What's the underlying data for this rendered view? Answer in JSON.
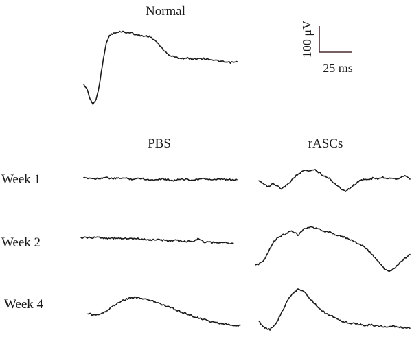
{
  "chart_data": {
    "type": "line",
    "title": "",
    "panels": [
      {
        "id": "normal",
        "label": "Normal",
        "values": [
          -0.2,
          -0.3,
          -0.55,
          -0.7,
          -0.55,
          -0.2,
          0.35,
          0.8,
          1.02,
          1.08,
          1.1,
          1.12,
          1.14,
          1.13,
          1.1,
          1.12,
          1.08,
          1.05,
          1.04,
          1.02,
          1.03,
          1.01,
          0.95,
          0.9,
          0.8,
          0.72,
          0.62,
          0.56,
          0.52,
          0.5,
          0.48,
          0.47,
          0.46,
          0.47,
          0.46,
          0.45,
          0.46,
          0.47,
          0.46,
          0.45,
          0.44,
          0.43,
          0.41,
          0.4,
          0.38,
          0.37,
          0.36,
          0.36,
          0.37,
          0.37
        ]
      },
      {
        "id": "pbs-week-1",
        "column": "PBS",
        "row": "Week 1",
        "values": [
          0.02,
          0.03,
          0.01,
          0.02,
          0.04,
          0.02,
          0.01,
          0.03,
          0.02,
          0.0,
          0.01,
          0.02,
          -0.01,
          -0.02,
          0.0,
          0.01,
          -0.02,
          -0.03,
          -0.01,
          0.0,
          -0.01,
          -0.02,
          0.0,
          0.01,
          -0.01,
          -0.02,
          0.0,
          -0.01,
          -0.02,
          -0.01
        ]
      },
      {
        "id": "rascs-week-1",
        "column": "rASCs",
        "row": "Week 1",
        "values": [
          -0.05,
          -0.1,
          -0.2,
          -0.12,
          -0.18,
          -0.25,
          -0.15,
          -0.05,
          0.08,
          0.15,
          0.22,
          0.2,
          0.25,
          0.18,
          0.1,
          0.05,
          -0.05,
          -0.15,
          -0.25,
          -0.3,
          -0.22,
          -0.12,
          -0.05,
          0.0,
          -0.02,
          0.03,
          0.0,
          0.05,
          0.02,
          0.04,
          0.0,
          0.05,
          0.1,
          0.02
        ]
      },
      {
        "id": "pbs-week-2",
        "column": "PBS",
        "row": "Week 2",
        "values": [
          0.04,
          0.05,
          0.04,
          0.06,
          0.04,
          0.03,
          0.04,
          0.02,
          0.03,
          0.01,
          0.02,
          0.0,
          -0.01,
          0.0,
          -0.02,
          -0.03,
          -0.02,
          -0.04,
          -0.05,
          -0.04,
          0.02,
          -0.06,
          -0.07,
          -0.08,
          -0.07,
          -0.09,
          -0.1
        ]
      },
      {
        "id": "rascs-week-2",
        "column": "rASCs",
        "row": "Week 2",
        "values": [
          -0.55,
          -0.5,
          -0.4,
          -0.2,
          0.0,
          0.15,
          0.2,
          0.25,
          0.32,
          0.3,
          0.2,
          0.35,
          0.4,
          0.42,
          0.38,
          0.35,
          0.32,
          0.3,
          0.25,
          0.22,
          0.18,
          0.15,
          0.1,
          0.05,
          0.0,
          -0.05,
          -0.15,
          -0.25,
          -0.38,
          -0.5,
          -0.62,
          -0.7,
          -0.66,
          -0.55,
          -0.45,
          -0.35,
          -0.25
        ]
      },
      {
        "id": "pbs-week-4",
        "column": "PBS",
        "row": "Week 4",
        "values": [
          -0.02,
          -0.08,
          -0.05,
          0.0,
          0.08,
          0.18,
          0.25,
          0.32,
          0.36,
          0.38,
          0.36,
          0.33,
          0.3,
          0.25,
          0.2,
          0.15,
          0.1,
          0.05,
          0.0,
          -0.05,
          -0.1,
          -0.14,
          -0.18,
          -0.22,
          -0.25,
          -0.28,
          -0.3,
          -0.32,
          -0.33,
          -0.34
        ]
      },
      {
        "id": "rascs-week-4",
        "column": "rASCs",
        "row": "Week 4",
        "values": [
          -0.2,
          -0.35,
          -0.4,
          -0.25,
          0.0,
          0.3,
          0.5,
          0.62,
          0.55,
          0.4,
          0.25,
          0.1,
          0.0,
          -0.05,
          -0.15,
          -0.2,
          -0.22,
          -0.25,
          -0.27,
          -0.3,
          -0.28,
          -0.3,
          -0.32,
          -0.33,
          -0.31,
          -0.34,
          -0.35,
          -0.36
        ]
      }
    ],
    "column_labels": [
      "PBS",
      "rASCs"
    ],
    "row_labels": [
      "Week 1",
      "Week 2",
      "Week 4"
    ],
    "scale_bar": {
      "amplitude_label": "100 μV",
      "time_label": "25 ms"
    }
  }
}
